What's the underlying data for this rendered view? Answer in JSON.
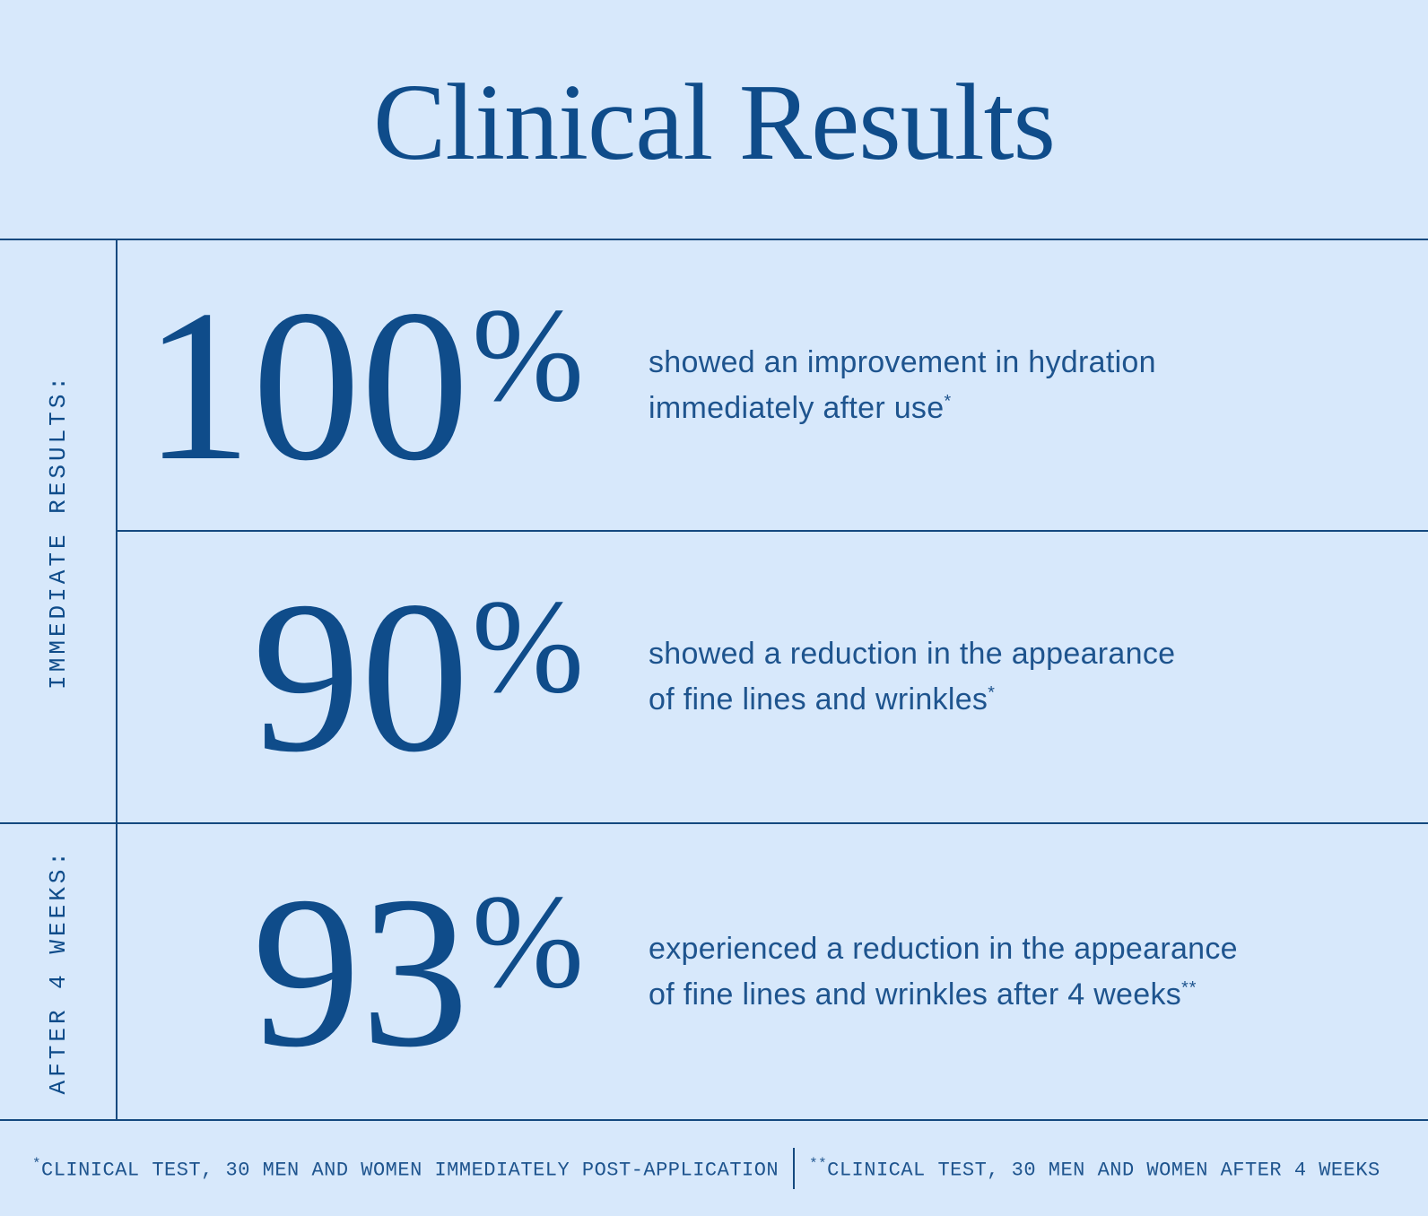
{
  "title": "Clinical Results",
  "colors": {
    "background": "#d7e8fb",
    "ink": "#0f4c8a",
    "body_text": "#1e548e"
  },
  "groups": [
    {
      "label": "IMMEDIATE RESULTS:"
    },
    {
      "label": "AFTER 4 WEEKS:"
    }
  ],
  "stats": [
    {
      "value": "100",
      "unit": "%",
      "line1": "showed an improvement in hydration",
      "line2": "immediately after use",
      "mark": "*"
    },
    {
      "value": "90",
      "unit": "%",
      "line1": "showed a reduction in the appearance",
      "line2": "of fine lines and wrinkles",
      "mark": "*"
    },
    {
      "value": "93",
      "unit": "%",
      "line1": "experienced a reduction in the appearance",
      "line2": "of fine lines and wrinkles after 4 weeks",
      "mark": "**"
    }
  ],
  "footnotes": [
    {
      "mark": "*",
      "text": "CLINICAL TEST, 30 MEN AND WOMEN IMMEDIATELY POST-APPLICATION"
    },
    {
      "mark": "**",
      "text": "CLINICAL TEST, 30 MEN AND WOMEN AFTER 4 WEEKS"
    }
  ],
  "chart_data": {
    "type": "table",
    "title": "Clinical Results",
    "groups": [
      {
        "label": "IMMEDIATE RESULTS:",
        "rows": [
          {
            "value": 100,
            "unit": "%",
            "description": "showed an improvement in hydration immediately after use*"
          },
          {
            "value": 90,
            "unit": "%",
            "description": "showed a reduction in the appearance of fine lines and wrinkles*"
          }
        ]
      },
      {
        "label": "AFTER 4 WEEKS:",
        "rows": [
          {
            "value": 93,
            "unit": "%",
            "description": "experienced a reduction in the appearance of fine lines and wrinkles after 4 weeks**"
          }
        ]
      }
    ],
    "footnotes": [
      "*CLINICAL TEST, 30 MEN AND WOMEN IMMEDIATELY POST-APPLICATION",
      "**CLINICAL TEST, 30 MEN AND WOMEN AFTER 4 WEEKS"
    ]
  }
}
